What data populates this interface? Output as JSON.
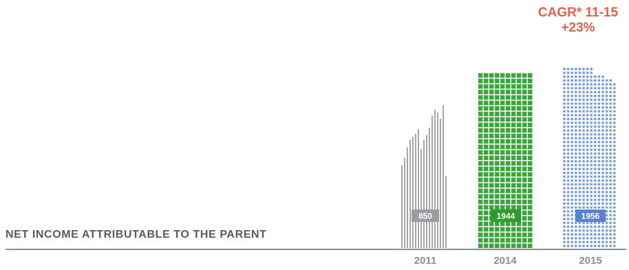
{
  "header": {
    "cagr_line1": "CAGR* 11-15",
    "cagr_line2": "+23%"
  },
  "metric_label": "NET INCOME ATTRIBUTABLE TO THE PARENT",
  "colors": {
    "accent": "#e0624a",
    "bar_2011": "#a3a5a8",
    "bar_2014": "#3aa63a",
    "bar_2015": "#7d9fd6",
    "axis": "#8a8d91",
    "label_text": "#555b63"
  },
  "chart_data": {
    "type": "bar",
    "categories": [
      "2011",
      "2014",
      "2015"
    ],
    "values": [
      850,
      1944,
      1956
    ],
    "value_labels": [
      "850",
      "1944",
      "1956"
    ],
    "ylim": [
      0,
      2400
    ],
    "grid": false,
    "legend": "none",
    "annotation": "CAGR* 11-15 +23%"
  }
}
